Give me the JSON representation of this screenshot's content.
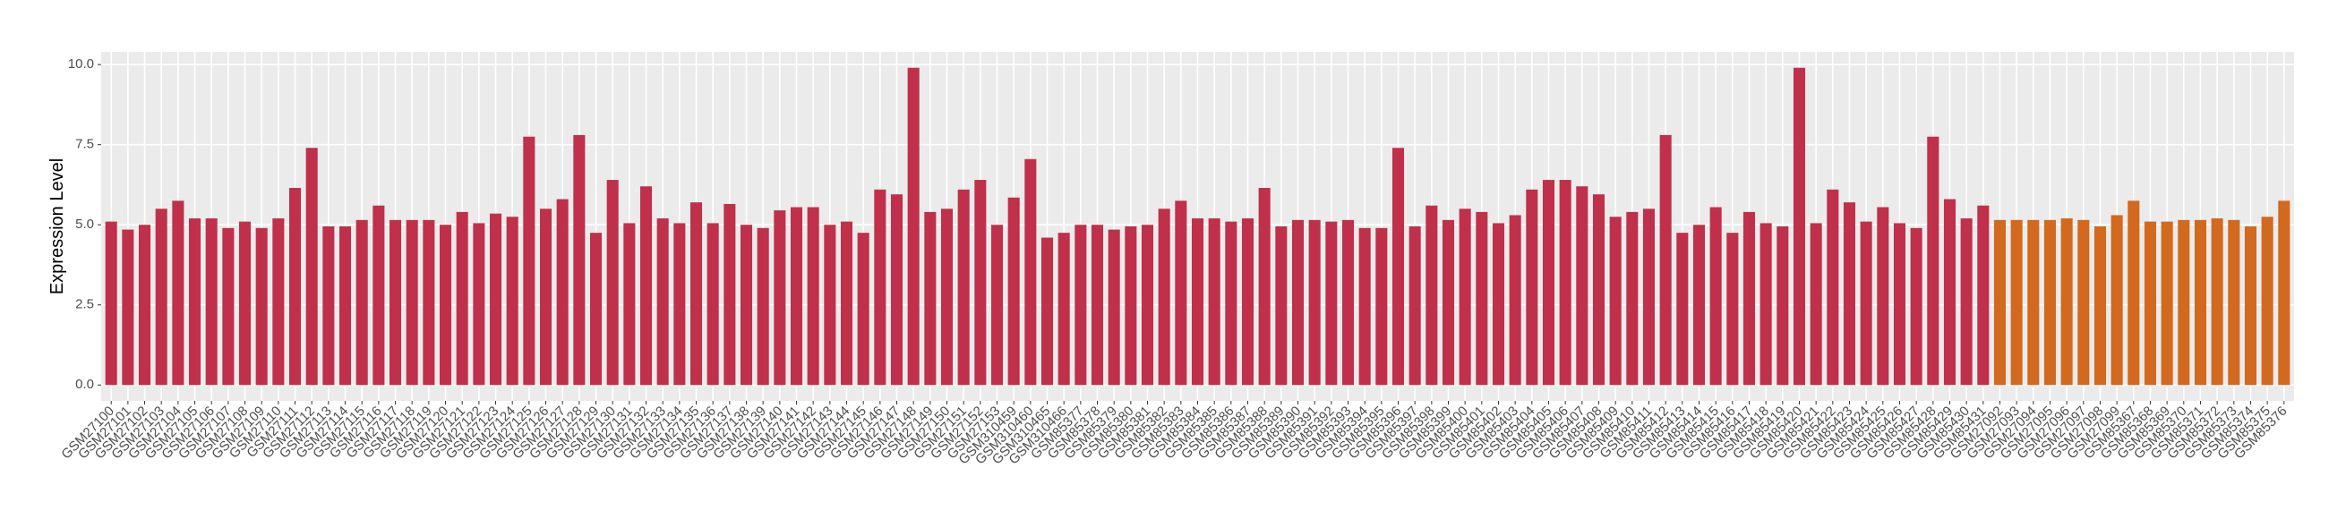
{
  "chart_data": {
    "type": "bar",
    "y_label": "Expression Level",
    "categories": [
      "GSM27100",
      "GSM27101",
      "GSM27102",
      "GSM27103",
      "GSM27104",
      "GSM27105",
      "GSM27106",
      "GSM27107",
      "GSM27108",
      "GSM27109",
      "GSM27110",
      "GSM27111",
      "GSM27112",
      "GSM27113",
      "GSM27114",
      "GSM27115",
      "GSM27116",
      "GSM27117",
      "GSM27118",
      "GSM27119",
      "GSM27120",
      "GSM27121",
      "GSM27122",
      "GSM27123",
      "GSM27124",
      "GSM27125",
      "GSM27126",
      "GSM27127",
      "GSM27128",
      "GSM27129",
      "GSM27130",
      "GSM27131",
      "GSM27132",
      "GSM27133",
      "GSM27134",
      "GSM27135",
      "GSM27136",
      "GSM27137",
      "GSM27138",
      "GSM27139",
      "GSM27140",
      "GSM27141",
      "GSM27142",
      "GSM27143",
      "GSM27144",
      "GSM27145",
      "GSM27146",
      "GSM27147",
      "GSM27148",
      "GSM27149",
      "GSM27150",
      "GSM27151",
      "GSM27152",
      "GSM27153",
      "GSM310459",
      "GSM310460",
      "GSM310465",
      "GSM310466",
      "GSM85377",
      "GSM85378",
      "GSM85379",
      "GSM85380",
      "GSM85381",
      "GSM85382",
      "GSM85383",
      "GSM85384",
      "GSM85385",
      "GSM85386",
      "GSM85387",
      "GSM85388",
      "GSM85389",
      "GSM85390",
      "GSM85391",
      "GSM85392",
      "GSM85393",
      "GSM85394",
      "GSM85395",
      "GSM85396",
      "GSM85397",
      "GSM85398",
      "GSM85399",
      "GSM85400",
      "GSM85401",
      "GSM85402",
      "GSM85403",
      "GSM85404",
      "GSM85405",
      "GSM85406",
      "GSM85407",
      "GSM85408",
      "GSM85409",
      "GSM85410",
      "GSM85411",
      "GSM85412",
      "GSM85413",
      "GSM85414",
      "GSM85415",
      "GSM85416",
      "GSM85417",
      "GSM85418",
      "GSM85419",
      "GSM85420",
      "GSM85421",
      "GSM85422",
      "GSM85423",
      "GSM85424",
      "GSM85425",
      "GSM85426",
      "GSM85427",
      "GSM85428",
      "GSM85429",
      "GSM85430",
      "GSM85431",
      "GSM27092",
      "GSM27093",
      "GSM27094",
      "GSM27095",
      "GSM27096",
      "GSM27097",
      "GSM27098",
      "GSM27099",
      "GSM85367",
      "GSM85368",
      "GSM85369",
      "GSM85370",
      "GSM85371",
      "GSM85372",
      "GSM85373",
      "GSM85374",
      "GSM85375",
      "GSM85376"
    ],
    "values": [
      5.1,
      4.85,
      5.0,
      5.5,
      5.75,
      5.2,
      5.2,
      4.9,
      5.1,
      4.9,
      5.2,
      6.15,
      7.4,
      4.95,
      4.95,
      5.15,
      5.6,
      5.15,
      5.15,
      5.15,
      5.0,
      5.4,
      5.05,
      5.35,
      5.25,
      7.75,
      5.5,
      5.8,
      7.8,
      4.75,
      6.4,
      5.05,
      6.2,
      5.2,
      5.05,
      5.7,
      5.05,
      5.65,
      5.0,
      4.9,
      5.45,
      5.55,
      5.55,
      5.0,
      5.1,
      4.75,
      6.1,
      5.95,
      9.9,
      5.4,
      5.5,
      6.1,
      6.4,
      5.0,
      5.85,
      7.05,
      4.6,
      4.75,
      5.0,
      5.0,
      4.85,
      4.95,
      5.0,
      5.5,
      5.75,
      5.2,
      5.2,
      5.1,
      5.2,
      6.15,
      4.95,
      5.15,
      5.15,
      5.1,
      5.15,
      4.9,
      4.9,
      7.4,
      4.95,
      5.6,
      5.15,
      5.5,
      5.4,
      5.05,
      5.3,
      6.1,
      6.4,
      6.4,
      6.2,
      5.95,
      5.25,
      5.4,
      5.5,
      7.8,
      4.75,
      5.0,
      5.55,
      4.75,
      5.4,
      5.05,
      4.95,
      9.9,
      5.05,
      6.1,
      5.7,
      5.1,
      5.55,
      5.05,
      4.9,
      7.75,
      5.8,
      5.2,
      5.6,
      5.15,
      5.15,
      5.15,
      5.15,
      5.2,
      5.15,
      4.95,
      5.3,
      5.75,
      5.1,
      5.1,
      5.15,
      5.15,
      5.2,
      5.15,
      4.95,
      5.25,
      5.75
    ],
    "colors": [
      "#c0304a",
      "#d2691e"
    ],
    "color_split": 113,
    "ylim": [
      -0.495,
      10.395
    ],
    "yticks": [
      {
        "value": 0,
        "label": "0.0"
      },
      {
        "value": 2.5,
        "label": "2.5"
      },
      {
        "value": 5,
        "label": "5.0"
      },
      {
        "value": 7.5,
        "label": "7.5"
      },
      {
        "value": 10,
        "label": "10.0"
      }
    ],
    "grid": true
  }
}
